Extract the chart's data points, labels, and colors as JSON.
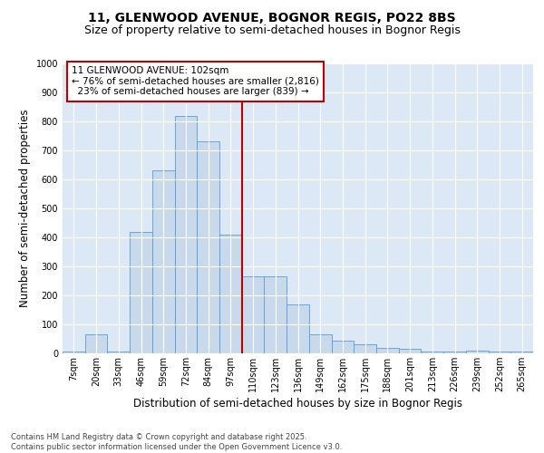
{
  "title_line1": "11, GLENWOOD AVENUE, BOGNOR REGIS, PO22 8BS",
  "title_line2": "Size of property relative to semi-detached houses in Bognor Regis",
  "xlabel": "Distribution of semi-detached houses by size in Bognor Regis",
  "ylabel": "Number of semi-detached properties",
  "categories": [
    "7sqm",
    "20sqm",
    "33sqm",
    "46sqm",
    "59sqm",
    "72sqm",
    "84sqm",
    "97sqm",
    "110sqm",
    "123sqm",
    "136sqm",
    "149sqm",
    "162sqm",
    "175sqm",
    "188sqm",
    "201sqm",
    "213sqm",
    "226sqm",
    "239sqm",
    "252sqm",
    "265sqm"
  ],
  "values": [
    5,
    65,
    5,
    420,
    630,
    820,
    730,
    410,
    265,
    265,
    170,
    65,
    45,
    30,
    20,
    15,
    5,
    5,
    10,
    5,
    5
  ],
  "bar_color": "#c9d9ec",
  "bar_edge_color": "#5b9bd5",
  "background_color": "#dce8f5",
  "fig_background": "#ffffff",
  "property_label": "11 GLENWOOD AVENUE: 102sqm",
  "pct_smaller": 76,
  "count_smaller": 2816,
  "pct_larger": 23,
  "count_larger": 839,
  "vline_color": "#c00000",
  "annotation_box_edge": "#c00000",
  "ylim": [
    0,
    1000
  ],
  "yticks": [
    0,
    100,
    200,
    300,
    400,
    500,
    600,
    700,
    800,
    900,
    1000
  ],
  "footer": "Contains HM Land Registry data © Crown copyright and database right 2025.\nContains public sector information licensed under the Open Government Licence v3.0.",
  "title_fontsize": 10,
  "subtitle_fontsize": 9,
  "axis_label_fontsize": 8.5,
  "tick_fontsize": 7,
  "annotation_fontsize": 7.5,
  "footer_fontsize": 6
}
